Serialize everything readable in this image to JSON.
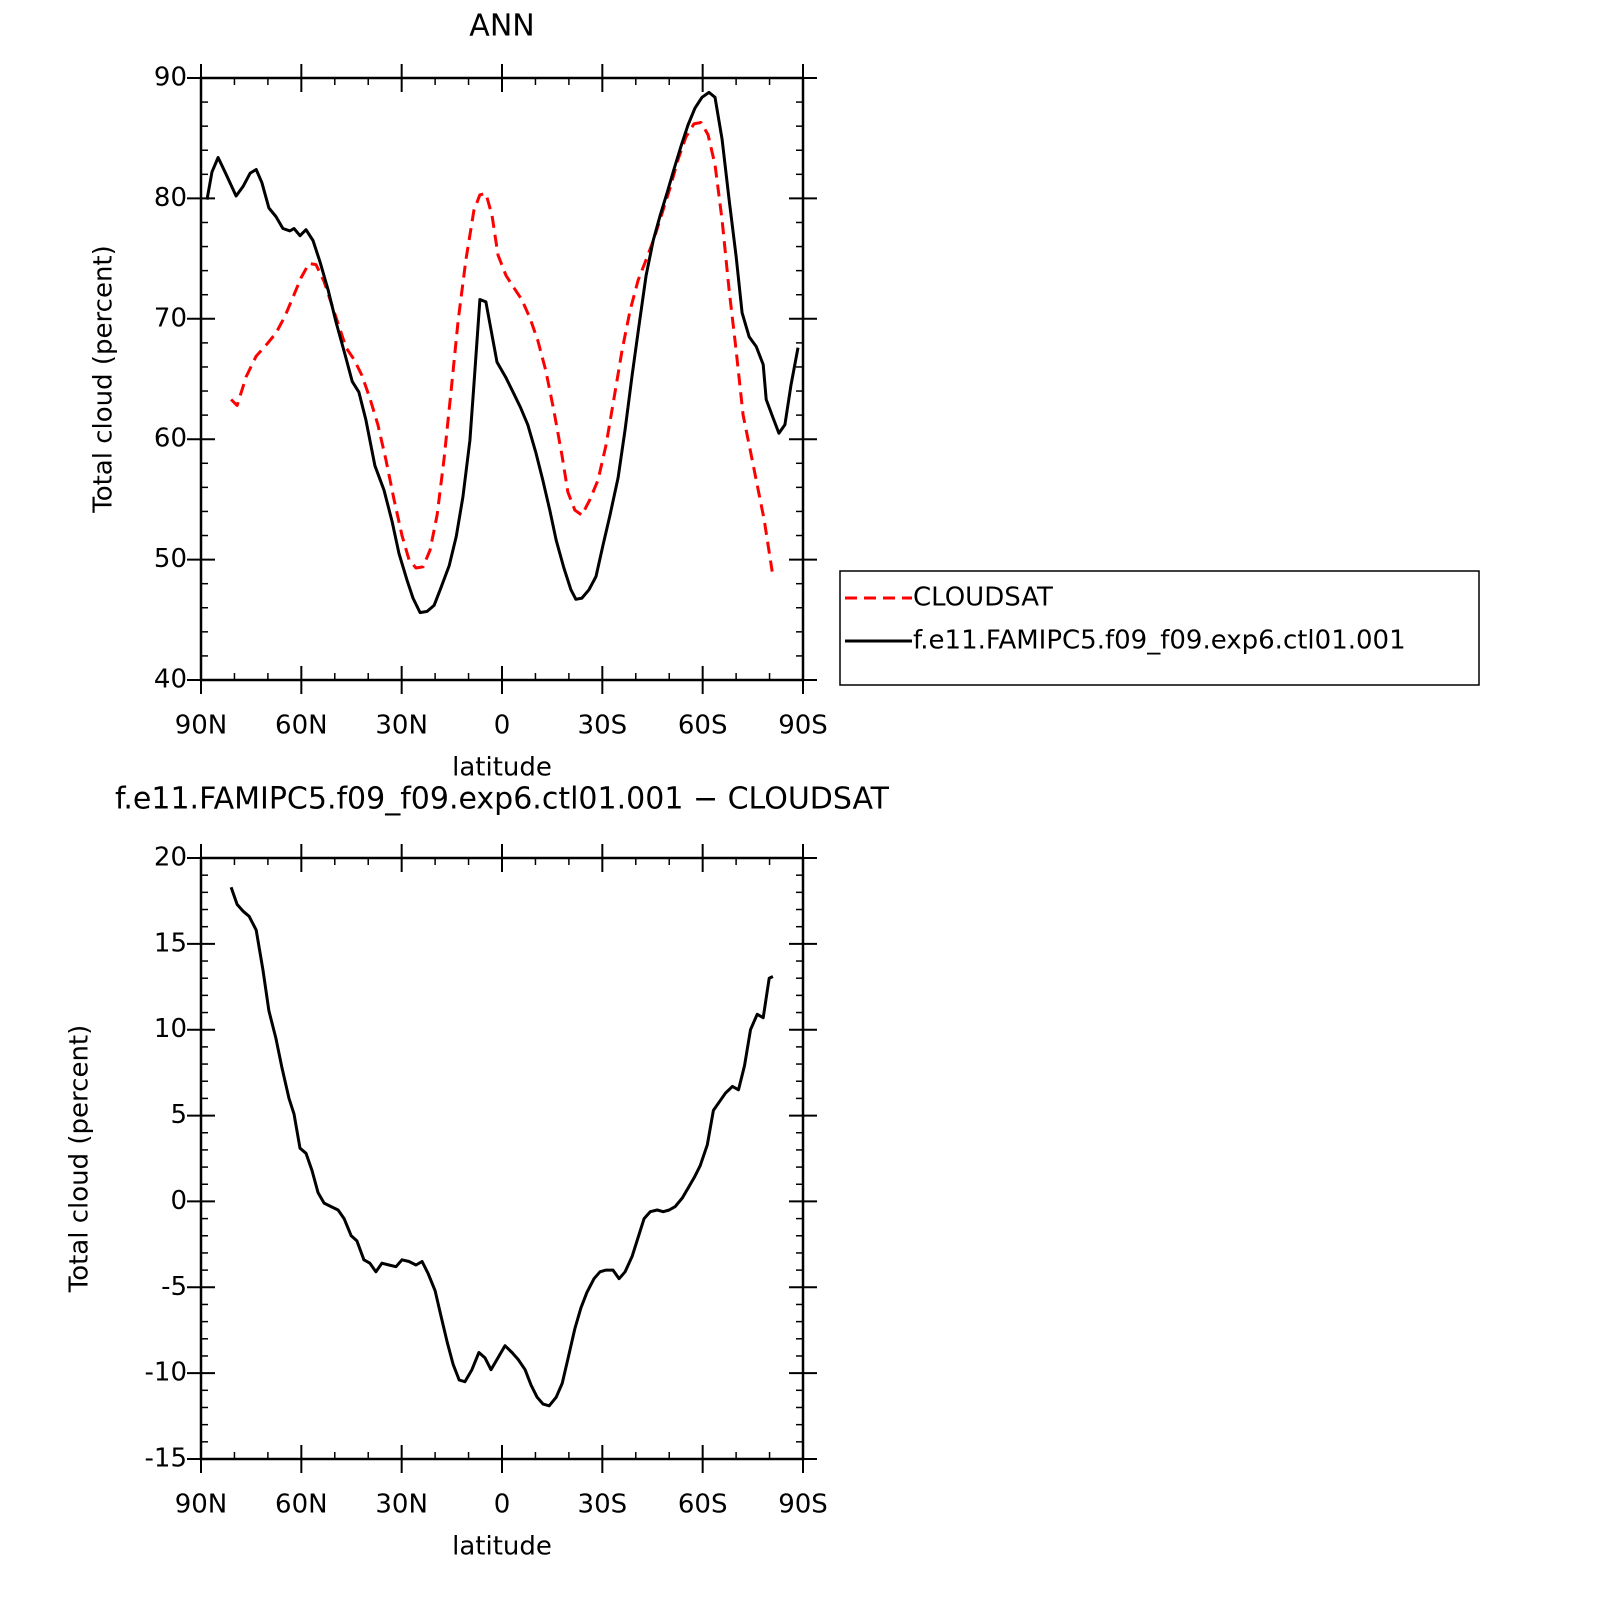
{
  "chart_data": [
    {
      "type": "line",
      "title": "ANN",
      "xlabel": "latitude",
      "ylabel": "Total cloud (percent)",
      "xlim": [
        90,
        -90
      ],
      "xticks": [
        {
          "value": 90,
          "label": "90N"
        },
        {
          "value": 60,
          "label": "60N"
        },
        {
          "value": 30,
          "label": "30N"
        },
        0,
        {
          "value": -30,
          "label": "30S"
        },
        {
          "value": -60,
          "label": "60S"
        },
        {
          "value": -90,
          "label": "90S"
        }
      ],
      "ylim": [
        40,
        90
      ],
      "yticks": [
        40,
        50,
        60,
        70,
        80,
        90
      ],
      "legend": "right",
      "series": [
        {
          "name": "CLOUDSAT",
          "color": "#ff0000",
          "dash": "dashed",
          "x": [
            81.0,
            79.2,
            76.5,
            73.5,
            70.6,
            67.6,
            64.9,
            62.5,
            60.1,
            57.7,
            55.6,
            53.2,
            50.8,
            48.4,
            46.6,
            44.2,
            41.9,
            39.5,
            37.1,
            34.7,
            32.3,
            29.9,
            27.8,
            25.7,
            23.6,
            21.5,
            19.4,
            17.3,
            15.2,
            13.1,
            10.8,
            8.4,
            6.6,
            4.8,
            3.0,
            1.2,
            -1.2,
            -3.5,
            -5.9,
            -8.3,
            -10.7,
            -13.1,
            -15.5,
            -17.9,
            -19.7,
            -21.8,
            -23.9,
            -26.3,
            -28.7,
            -31.1,
            -33.5,
            -35.9,
            -38.3,
            -40.7,
            -43.1,
            -45.5,
            -47.9,
            -50.3,
            -52.6,
            -55.0,
            -57.4,
            -59.5,
            -61.6,
            -63.7,
            -65.8,
            -67.9,
            -70.0,
            -72.1,
            -74.2,
            -76.3,
            -78.4,
            -80.8
          ],
          "values": [
            63.3,
            62.8,
            65.2,
            66.9,
            67.8,
            68.8,
            70.2,
            71.8,
            73.4,
            74.6,
            74.5,
            73.1,
            71.1,
            69.1,
            67.6,
            66.6,
            65.3,
            63.4,
            61.2,
            58.3,
            55.0,
            52.0,
            50.0,
            49.3,
            49.4,
            50.8,
            53.7,
            58.4,
            64.1,
            69.9,
            74.9,
            79.0,
            80.3,
            80.4,
            78.6,
            75.3,
            73.6,
            72.6,
            71.6,
            70.1,
            68.2,
            65.7,
            62.4,
            58.7,
            55.6,
            54.1,
            53.7,
            55.0,
            56.6,
            59.5,
            63.4,
            67.4,
            70.7,
            73.2,
            74.9,
            76.7,
            78.8,
            80.9,
            83.2,
            85.1,
            86.2,
            86.3,
            85.3,
            82.8,
            78.2,
            72.4,
            67.4,
            62.0,
            59.1,
            56.2,
            53.3,
            49.0
          ]
        },
        {
          "name": "f.e11.FAMIPC5.f09_f09.exp6.ctl01.001",
          "color": "#000000",
          "dash": "solid",
          "x": [
            88.2,
            86.7,
            84.9,
            82.5,
            79.5,
            77.4,
            75.3,
            73.5,
            71.8,
            69.7,
            67.6,
            65.5,
            63.4,
            62.2,
            60.4,
            58.6,
            56.5,
            54.4,
            52.0,
            49.6,
            46.9,
            44.8,
            42.8,
            40.7,
            38.0,
            35.3,
            32.9,
            30.8,
            28.4,
            26.6,
            24.5,
            22.4,
            20.3,
            18.2,
            15.8,
            13.7,
            11.7,
            9.6,
            8.4,
            6.6,
            4.8,
            3.3,
            1.5,
            -1.2,
            -3.5,
            -5.6,
            -7.7,
            -10.1,
            -12.2,
            -14.3,
            -16.2,
            -18.5,
            -20.6,
            -22.1,
            -23.9,
            -26.0,
            -28.1,
            -30.2,
            -32.3,
            -34.7,
            -36.8,
            -38.9,
            -41.0,
            -43.1,
            -45.2,
            -47.3,
            -49.4,
            -51.4,
            -53.5,
            -55.6,
            -57.7,
            -59.8,
            -61.9,
            -63.7,
            -65.8,
            -67.9,
            -70.0,
            -71.8,
            -73.9,
            -76.0,
            -78.1,
            -79.0,
            -81.0,
            -82.8,
            -84.6,
            -86.4,
            -88.5
          ],
          "values": [
            79.9,
            82.2,
            83.4,
            82.0,
            80.2,
            81.0,
            82.1,
            82.4,
            81.3,
            79.2,
            78.5,
            77.5,
            77.3,
            77.5,
            76.9,
            77.4,
            76.5,
            74.7,
            72.4,
            69.7,
            67.0,
            64.8,
            63.9,
            61.6,
            57.8,
            55.8,
            53.2,
            50.5,
            48.3,
            46.8,
            45.6,
            45.7,
            46.2,
            47.7,
            49.5,
            51.9,
            55.2,
            59.9,
            64.5,
            71.6,
            71.4,
            69.1,
            66.4,
            65.1,
            63.8,
            62.6,
            61.2,
            58.9,
            56.6,
            54.1,
            51.6,
            49.3,
            47.5,
            46.7,
            46.8,
            47.5,
            48.6,
            51.2,
            53.7,
            56.8,
            60.8,
            65.3,
            69.5,
            73.6,
            76.5,
            78.6,
            80.5,
            82.4,
            84.3,
            86.1,
            87.5,
            88.4,
            88.8,
            88.4,
            84.9,
            79.9,
            75.2,
            70.5,
            68.5,
            67.7,
            66.2,
            63.3,
            61.8,
            60.5,
            61.2,
            64.5,
            67.6
          ]
        }
      ]
    },
    {
      "type": "line",
      "title": "f.e11.FAMIPC5.f09_f09.exp6.ctl01.001 − CLOUDSAT",
      "xlabel": "latitude",
      "ylabel": "Total cloud (percent)",
      "xlim": [
        90,
        -90
      ],
      "xticks": [
        {
          "value": 90,
          "label": "90N"
        },
        {
          "value": 60,
          "label": "60N"
        },
        {
          "value": 30,
          "label": "30N"
        },
        0,
        {
          "value": -30,
          "label": "30S"
        },
        {
          "value": -60,
          "label": "60S"
        },
        {
          "value": -90,
          "label": "90S"
        }
      ],
      "ylim": [
        -15,
        20
      ],
      "yticks": [
        -15,
        -10,
        -5,
        0,
        5,
        10,
        15,
        20
      ],
      "series": [
        {
          "color": "#000000",
          "dash": "solid",
          "x": [
            81.0,
            79.2,
            77.4,
            75.6,
            73.5,
            71.5,
            69.7,
            67.6,
            65.8,
            63.7,
            62.2,
            60.4,
            58.6,
            56.8,
            55.0,
            53.2,
            51.1,
            49.0,
            47.2,
            45.1,
            43.4,
            41.3,
            39.5,
            37.7,
            35.9,
            33.8,
            31.7,
            29.9,
            27.8,
            25.7,
            23.9,
            22.1,
            20.0,
            18.2,
            16.4,
            14.6,
            12.8,
            11.1,
            9.0,
            6.9,
            5.1,
            3.3,
            1.2,
            -0.9,
            -3.0,
            -4.8,
            -6.9,
            -8.7,
            -10.5,
            -12.3,
            -14.1,
            -16.2,
            -18.0,
            -19.8,
            -21.8,
            -23.6,
            -25.4,
            -27.5,
            -29.3,
            -31.1,
            -33.2,
            -35.0,
            -36.8,
            -38.9,
            -40.7,
            -42.5,
            -44.3,
            -46.4,
            -48.2,
            -50.0,
            -51.8,
            -53.9,
            -55.7,
            -57.5,
            -59.3,
            -61.4,
            -63.2,
            -65.0,
            -66.8,
            -68.9,
            -70.7,
            -72.5,
            -74.3,
            -76.3,
            -78.1,
            -79.9,
            -81.0
          ],
          "values": [
            18.3,
            17.3,
            16.9,
            16.6,
            15.8,
            13.5,
            11.1,
            9.5,
            7.8,
            6.0,
            5.1,
            3.1,
            2.8,
            1.8,
            0.5,
            -0.1,
            -0.3,
            -0.5,
            -1.0,
            -2.0,
            -2.3,
            -3.4,
            -3.6,
            -4.1,
            -3.6,
            -3.7,
            -3.8,
            -3.4,
            -3.5,
            -3.7,
            -3.5,
            -4.2,
            -5.2,
            -6.7,
            -8.2,
            -9.5,
            -10.4,
            -10.5,
            -9.8,
            -8.8,
            -9.1,
            -9.8,
            -9.1,
            -8.4,
            -8.8,
            -9.2,
            -9.8,
            -10.7,
            -11.4,
            -11.8,
            -11.9,
            -11.4,
            -10.6,
            -9.1,
            -7.4,
            -6.2,
            -5.3,
            -4.5,
            -4.1,
            -4.0,
            -4.0,
            -4.5,
            -4.1,
            -3.2,
            -2.1,
            -1.0,
            -0.6,
            -0.5,
            -0.6,
            -0.5,
            -0.3,
            0.2,
            0.8,
            1.4,
            2.1,
            3.3,
            5.3,
            5.8,
            6.3,
            6.7,
            6.5,
            7.9,
            10.0,
            10.9,
            10.7,
            13.0,
            13.1
          ]
        }
      ]
    }
  ]
}
